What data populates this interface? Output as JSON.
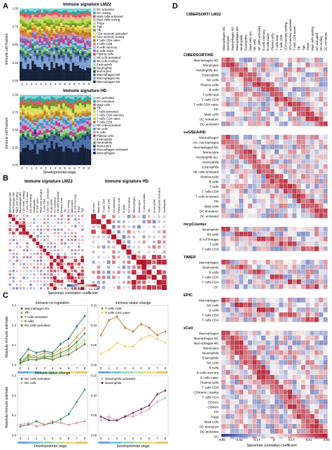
{
  "panel_letters": [
    "A",
    "B",
    "C",
    "D"
  ],
  "colors": {
    "red": "#b2182b",
    "white": "#f7f7f7",
    "blue": "#2c3d9e",
    "line_nk": "#1f7a3a",
    "line_nk2": "#6cc07a",
    "line_neu": "#6d1b48",
    "line_neu2": "#c9a3c0"
  },
  "panelA": {
    "chart1": {
      "title": "Immune signature LM22",
      "ylabel": "Immune cell fraction",
      "yticks": [
        "0.00",
        "0.25",
        "0.50",
        "0.75",
        "1.00"
      ],
      "xticks": [
        "0",
        "1",
        "1",
        "2",
        "3",
        "3",
        "4",
        "4",
        "5",
        "5",
        "6",
        "6",
        "7",
        "8",
        "8"
      ],
      "legend": [
        {
          "label": "DC activated",
          "color": "#7fd6d6"
        },
        {
          "label": "DC resting",
          "color": "#31a7a7"
        },
        {
          "label": "Mast cells activated",
          "color": "#e65555"
        },
        {
          "label": "Mast cells resting",
          "color": "#f0a4a4"
        },
        {
          "label": "Tregs",
          "color": "#c2e05a"
        },
        {
          "label": "Tgd",
          "color": "#98c23a"
        },
        {
          "label": "Tfh",
          "color": "#6e9626"
        },
        {
          "label": "CD4 memory activated",
          "color": "#f0dc63"
        },
        {
          "label": "CD4 memory resting",
          "color": "#d6b33a"
        },
        {
          "label": "T cells CD4 naive",
          "color": "#bc7c26"
        },
        {
          "label": "T cells CD8",
          "color": "#e67e4e"
        },
        {
          "label": "B cells memory",
          "color": "#bfa0d4"
        },
        {
          "label": "B cells naive",
          "color": "#8a6aae"
        },
        {
          "label": "Plasma cells",
          "color": "#c83a8a"
        },
        {
          "label": "NK cells activated",
          "color": "#93c7e6"
        },
        {
          "label": "NK cells resting",
          "color": "#4d8fc4"
        },
        {
          "label": "Eosinophils",
          "color": "#9bd39b"
        },
        {
          "label": "Neutrophils",
          "color": "#54a054"
        },
        {
          "label": "Monocytes",
          "color": "#27436e"
        },
        {
          "label": "Macrophages M2",
          "color": "#4f70a8"
        },
        {
          "label": "Macrophages M1",
          "color": "#7fa2d0"
        },
        {
          "label": "Macrophages M0",
          "color": "#18223a"
        }
      ]
    },
    "chart2": {
      "title": "Immune signature HD",
      "ylabel": "Immune cell fraction",
      "xlabel": "Developmental stage",
      "yticks": [
        "0.00",
        "0.25",
        "0.50",
        "0.75",
        "1.00"
      ],
      "xticks": [
        "0",
        "1",
        "1",
        "2",
        "3",
        "3",
        "4",
        "4",
        "5",
        "5",
        "6",
        "6",
        "7",
        "8",
        "8"
      ],
      "legend": [
        {
          "label": "DC activated",
          "color": "#7fd6d6"
        },
        {
          "label": "DC immature",
          "color": "#31a7a7"
        },
        {
          "label": "Mast cells",
          "color": "#e65555"
        },
        {
          "label": "Tfh",
          "color": "#6e9626"
        },
        {
          "label": "T cells activated",
          "color": "#c2e05a"
        },
        {
          "label": "T cells CD4 memory",
          "color": "#f0dc63"
        },
        {
          "label": "T cells CD4 naive",
          "color": "#d6b33a"
        },
        {
          "label": "T cells CD8",
          "color": "#bc7c26"
        },
        {
          "label": "NK cells activated",
          "color": "#93c7e6"
        },
        {
          "label": "NK cells",
          "color": "#4d8fc4"
        },
        {
          "label": "B cells",
          "color": "#bfa0d4"
        },
        {
          "label": "Plasma cells",
          "color": "#c83a8a"
        },
        {
          "label": "Eosinophils",
          "color": "#9bd39b"
        },
        {
          "label": "Neutrophils",
          "color": "#54a054"
        },
        {
          "label": "Monocytes",
          "color": "#27436e"
        },
        {
          "label": "Macrophages activated",
          "color": "#4f70a8"
        },
        {
          "label": "Macrophages",
          "color": "#18223a"
        }
      ]
    }
  },
  "panelB": {
    "lm22": {
      "title": "Immune signature LM22",
      "labels": [
        "Macrophages M2",
        "Macrophages M0",
        "Mast cells resting",
        "Macrophages M1",
        "CD4 mem. resting",
        "T cells CD4 naive",
        "NK cells resting",
        "Neutrophils",
        "B cells naive",
        "Mast cells activated",
        "T cells CD8",
        "CD4 mem. activated",
        "Eosinophils",
        "DC activated",
        "NK cells activated",
        "Plasma cells",
        "Tfh",
        "DC resting",
        "Monocytes",
        "B cells memory",
        "Tregs",
        "Tgd"
      ]
    },
    "hd": {
      "title": "Immune signature HD",
      "labels": [
        "NK cells",
        "Mast cells",
        "T cells CD4",
        "T cells CD8",
        "DC activated",
        "Plasma cells",
        "B cells",
        "DC immature",
        "Macrophages",
        "Monocytes",
        "T cells activated",
        "Tfh",
        "Eosinophils",
        "Neutrophils activated",
        "Neutrophils"
      ]
    },
    "scale_ticks": [
      "−1",
      "−0.8",
      "−0.4",
      "0",
      "0.4",
      "0.81"
    ],
    "scale_label": "Spearman correlation coefficient"
  },
  "panelC": {
    "ylabel": "Absolute immune estimate",
    "xlabel": "Developmental stage",
    "stages": [
      0,
      1,
      2,
      3,
      4,
      5,
      6,
      7,
      8
    ],
    "plots": [
      {
        "title": "Immune co-regulation",
        "yticks": [
          "0.0",
          "0.1",
          "0.2",
          "0.3"
        ],
        "ylim": [
          0,
          0.34
        ],
        "series": [
          {
            "name": "Macrophages M1",
            "color": "#1f6a6a",
            "values": [
              0.03,
              0.09,
              0.07,
              0.08,
              0.07,
              0.12,
              0.15,
              0.22,
              0.28
            ]
          },
          {
            "name": "Tfh",
            "color": "#c8962e",
            "values": [
              0.02,
              0.06,
              0.05,
              0.07,
              0.06,
              0.09,
              0.11,
              0.16,
              0.21
            ]
          },
          {
            "name": "T cells activated",
            "color": "#3f8b3b",
            "values": [
              0.01,
              0.05,
              0.04,
              0.05,
              0.05,
              0.07,
              0.09,
              0.13,
              0.18
            ]
          },
          {
            "name": "B cells",
            "color": "#9fcf8a",
            "values": [
              0.01,
              0.04,
              0.04,
              0.04,
              0.04,
              0.06,
              0.08,
              0.11,
              0.14
            ]
          },
          {
            "name": "NK cells activated",
            "color": "#5a6e2a",
            "values": [
              0.01,
              0.03,
              0.03,
              0.04,
              0.03,
              0.05,
              0.06,
              0.09,
              0.12
            ]
          }
        ]
      },
      {
        "title": "Immune status change",
        "yticks": [
          "0.00",
          "0.05",
          "0.10",
          "0.15"
        ],
        "ylim": [
          0,
          0.16
        ],
        "series": [
          {
            "name": "T cells CD8",
            "color": "#b87a2a",
            "values": [
              0.08,
              0.12,
              0.13,
              0.1,
              0.09,
              0.11,
              0.1,
              0.08,
              0.09
            ]
          },
          {
            "name": "T cells CD4 naive",
            "color": "#e6cc62",
            "values": [
              0.03,
              0.04,
              0.06,
              0.05,
              0.05,
              0.07,
              0.08,
              0.07,
              0.06
            ]
          }
        ]
      },
      {
        "title": "Immune status change",
        "yticks": [
          "0.0",
          "0.1",
          "0.2",
          "0.3"
        ],
        "ylim": [
          0,
          0.34
        ],
        "series": [
          {
            "name": "NK cells activated",
            "color": "#2f8b52",
            "values": [
              0.05,
              0.06,
              0.08,
              0.06,
              0.07,
              0.09,
              0.12,
              0.19,
              0.26
            ]
          },
          {
            "name": "NK cells",
            "color": "#d88aa0",
            "values": [
              0.06,
              0.07,
              0.05,
              0.06,
              0.08,
              0.07,
              0.06,
              0.07,
              0.08
            ]
          }
        ]
      },
      {
        "title": "",
        "yticks": [
          "0.00",
          "0.05",
          "0.10",
          "0.15"
        ],
        "ylim": [
          0,
          0.16
        ],
        "series": [
          {
            "name": "Neutrophils activated",
            "color": "#c9a3c0",
            "values": [
              0.04,
              0.05,
              0.04,
              0.05,
              0.05,
              0.06,
              0.07,
              0.09,
              0.1
            ]
          },
          {
            "name": "Neutrophils",
            "color": "#6d1b48",
            "values": [
              0.05,
              0.04,
              0.04,
              0.05,
              0.06,
              0.07,
              0.08,
              0.11,
              0.12
            ]
          }
        ]
      }
    ],
    "stage_bar_colors": [
      "#6fa8dc",
      "#76c6e8",
      "#9fd6c6",
      "#c7e3a0",
      "#e8e48a",
      "#f0c06a"
    ]
  },
  "panelD": {
    "top_left_label": "CIBERSORT/ LM22",
    "columns": [
      "Macrophages M1",
      "Monocytes",
      "Macrophages M2",
      "Macrophages M0",
      "Neutrophils",
      "Eosinophils",
      "Mast cells act.",
      "NK cells",
      "NK cells activated",
      "B cells memory",
      "B cells naive",
      "Plasma cells",
      "T cells total",
      "T cells CD8",
      "CD4 memory resting",
      "CD4 memory activated",
      "T cells CD4 naive",
      "Tfh",
      "Tgd",
      "Tregs",
      "Mast cells resting",
      "DC activated",
      "DC resting",
      "DC immature"
    ],
    "sections": [
      {
        "name": "CIBERSORT/HD",
        "rows": [
          "Macrophages M1",
          "Monocytes",
          "Neutrophils act.",
          "Eosinophils",
          "NK cells",
          "Plasma cells",
          "B cells",
          "T cells total",
          "T cells CD8",
          "T cells CD4 naive",
          "Tfh",
          "Mast cells",
          "DC immature",
          "DC activated"
        ]
      },
      {
        "name": "ssGSEA/HD",
        "rows": [
          "Macrophages",
          "Act. macrophages",
          "Macrophages M1",
          "Monocytes",
          "Neutrophils act.",
          "Neutrophils",
          "Eosinophils",
          "NK cells activated",
          "Plasma cells",
          "B cells",
          "T cells",
          "T cells CD8",
          "T cells activated",
          "Tfh",
          "Mast cells",
          "DC immature",
          "DC activated"
        ]
      },
      {
        "name": "mcpCounter",
        "rows": [
          "Neutrophils",
          "NK cells",
          "B cell lineage",
          "T cells",
          "T cells CD8"
        ]
      },
      {
        "name": "TIMER",
        "rows": [
          "Macrophages",
          "Neutrophils",
          "B cells",
          "T cells CD8",
          "T cells CD4",
          "DC"
        ]
      },
      {
        "name": "EPIC",
        "rows": [
          "Macrophages",
          "NK cells",
          "B cells",
          "T cells CD8",
          "T cells CD4"
        ]
      },
      {
        "name": "xCell",
        "rows": [
          "Macrophages",
          "Macrophages M1",
          "Macrophages M2",
          "Monocytes",
          "Neutrophils",
          "Eosinophils",
          "NK cells",
          "B cells",
          "B cells memory",
          "B cells naive",
          "Plasma cells",
          "T cells CD8",
          "CD4mem. resting",
          "T cells CD4",
          "CD4cm",
          "CD4em",
          "Tfh",
          "Tregs",
          "Mast cells",
          "DC immature",
          "DC activated",
          "DC"
        ]
      }
    ],
    "scale_ticks": [
      "−0.85",
      "−0.51",
      "−0.17",
      "0",
      "0.17",
      "0.51",
      "0.85"
    ],
    "scale_label": "Spearman correlation coefficient"
  }
}
